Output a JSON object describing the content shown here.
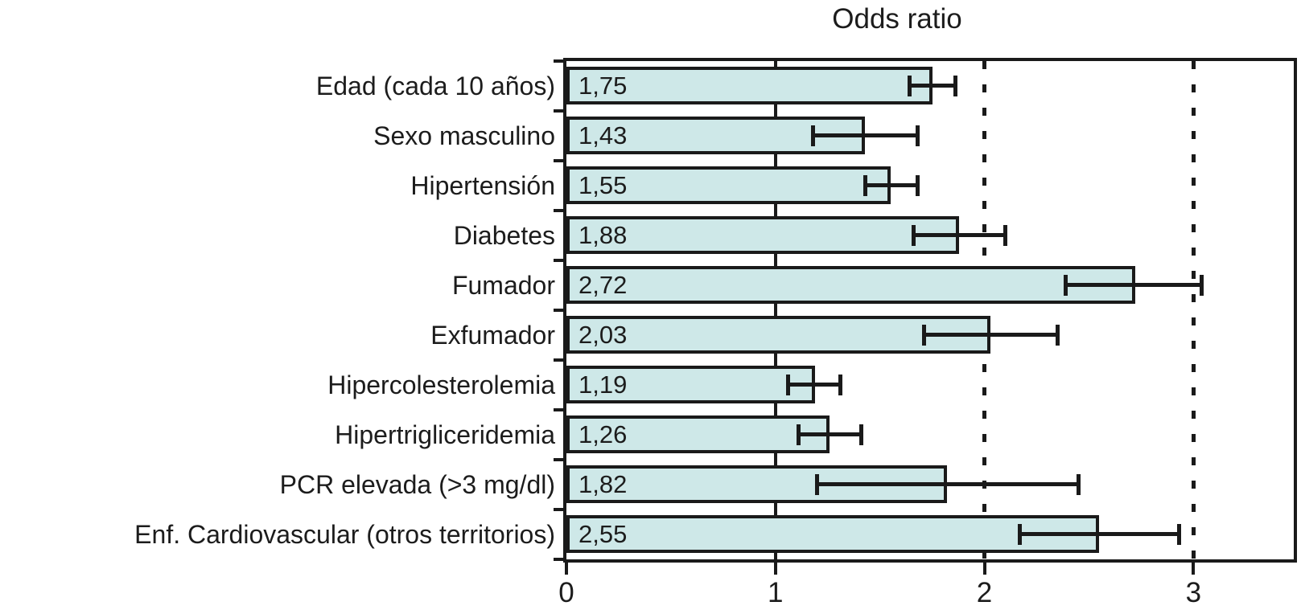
{
  "chart_data": {
    "type": "bar",
    "orientation": "horizontal",
    "title": "Odds ratio",
    "categories": [
      "Edad (cada 10 años)",
      "Sexo masculino",
      "Hipertensión",
      "Diabetes",
      "Fumador",
      "Exfumador",
      "Hipercolesterolemia",
      "Hipertrigliceridemia",
      "PCR elevada (>3 mg/dl)",
      "Enf. Cardiovascular (otros territorios)"
    ],
    "values": [
      1.75,
      1.43,
      1.55,
      1.88,
      2.72,
      2.03,
      1.19,
      1.26,
      1.82,
      2.55
    ],
    "value_labels": [
      "1,75",
      "1,43",
      "1,55",
      "1,88",
      "2,72",
      "2,03",
      "1,19",
      "1,26",
      "1,82",
      "2,55"
    ],
    "ci_low": [
      1.64,
      1.18,
      1.43,
      1.66,
      2.39,
      1.71,
      1.06,
      1.11,
      1.2,
      2.17
    ],
    "ci_high": [
      1.86,
      1.68,
      1.68,
      2.1,
      3.04,
      2.35,
      1.31,
      1.41,
      2.45,
      2.93
    ],
    "xlabel": "",
    "ylabel": "",
    "xlim": [
      0,
      3.48
    ],
    "x_ticks": [
      0,
      1,
      2,
      3
    ],
    "x_tick_labels": [
      "0",
      "1",
      "2",
      "3"
    ],
    "reference_lines": [
      {
        "value": 1,
        "style": "solid"
      },
      {
        "value": 2,
        "style": "dotted"
      },
      {
        "value": 3,
        "style": "dotted"
      }
    ],
    "grid": false,
    "legend": false,
    "error_bars": true,
    "colors": {
      "bar_fill": "#cee8e8",
      "bar_border": "#1a1a1a",
      "error_bar": "#1a1a1a",
      "text": "#1c1c1c",
      "background": "#ffffff"
    }
  }
}
